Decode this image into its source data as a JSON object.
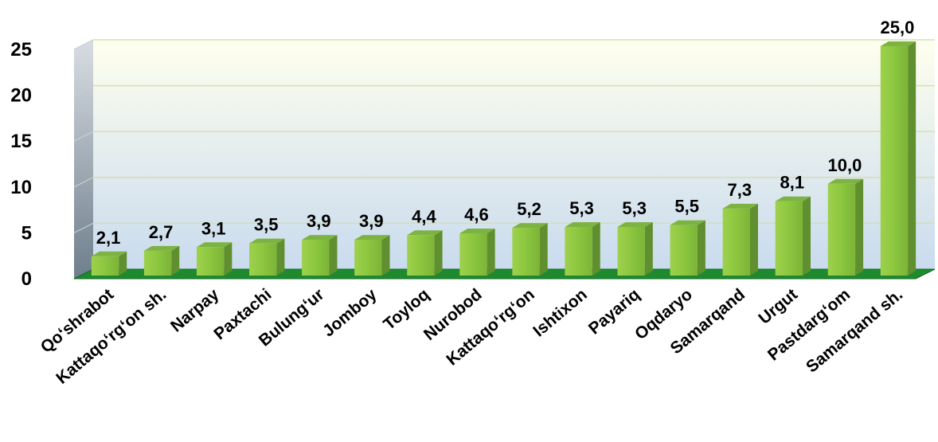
{
  "chart_data": {
    "type": "bar",
    "categories": [
      "Qo‘shrabot",
      "Kattaqo‘rg‘on sh.",
      "Narpay",
      "Paxtachi",
      "Bulung‘ur",
      "Jomboy",
      "Toyloq",
      "Nurobod",
      "Kattaqo‘rg‘on",
      "Ishtixon",
      "Payariq",
      "Oqdaryo",
      "Samarqand",
      "Urgut",
      "Pastdarg‘om",
      "Samarqand sh."
    ],
    "values": [
      2.1,
      2.7,
      3.1,
      3.5,
      3.9,
      3.9,
      4.4,
      4.6,
      5.2,
      5.3,
      5.3,
      5.5,
      7.3,
      8.1,
      10.0,
      25.0
    ],
    "value_labels": [
      "2,1",
      "2,7",
      "3,1",
      "3,5",
      "3,9",
      "3,9",
      "4,4",
      "4,6",
      "5,2",
      "5,3",
      "5,3",
      "5,5",
      "7,3",
      "8,1",
      "10,0",
      "25,0"
    ],
    "y_ticks": [
      "0",
      "5",
      "10",
      "15",
      "20",
      "25"
    ],
    "ylim": [
      0,
      25
    ],
    "title": "",
    "xlabel": "",
    "ylabel": "",
    "grid": true,
    "style": "3d-column",
    "colors": {
      "bar_front": "#8cc63f",
      "bar_top": "#7cb342",
      "bar_side": "#5f8f2e",
      "floor": "#1a7a2a",
      "wall_top": "#ffffee",
      "wall_bottom": "#cfdff0",
      "side_wall": "#7f8c96"
    }
  }
}
